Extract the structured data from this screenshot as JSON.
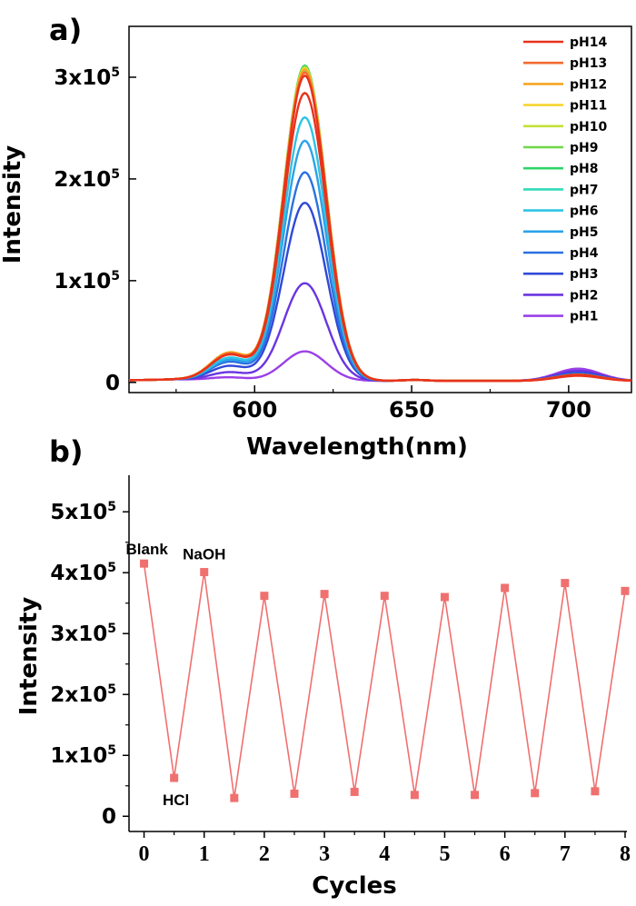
{
  "chart_data": [
    {
      "panel": "a)",
      "type": "line",
      "xlabel": "Wavelength(nm)",
      "ylabel": "Intensity",
      "xlim": [
        560,
        720
      ],
      "ylim": [
        -10000,
        350000
      ],
      "xticks": [
        {
          "value": 600,
          "label": "600"
        },
        {
          "value": 650,
          "label": "650"
        },
        {
          "value": 700,
          "label": "700"
        }
      ],
      "yticks": [
        {
          "value": 0,
          "label": "0"
        },
        {
          "value": 100000,
          "base": "1x10",
          "exp": "5"
        },
        {
          "value": 200000,
          "base": "2x10",
          "exp": "5"
        },
        {
          "value": 300000,
          "base": "3x10",
          "exp": "5"
        }
      ],
      "peak_center": 616,
      "peak_width": 6.8,
      "side_center": 592,
      "side_width": 6,
      "far_center": 703,
      "far_width": 7,
      "series": [
        {
          "name": "pH14",
          "color": "#e8331c",
          "peak": 300000,
          "side": 25000,
          "far": 6000
        },
        {
          "name": "pH13",
          "color": "#f26a2e",
          "peak": 303000,
          "side": 26000,
          "far": 6000
        },
        {
          "name": "pH12",
          "color": "#f5a623",
          "peak": 306000,
          "side": 27000,
          "far": 6000
        },
        {
          "name": "pH11",
          "color": "#f7d430",
          "peak": 307000,
          "side": 27000,
          "far": 6000
        },
        {
          "name": "pH10",
          "color": "#c2e038",
          "peak": 308000,
          "side": 27000,
          "far": 6000
        },
        {
          "name": "pH9",
          "color": "#6fd848",
          "peak": 309000,
          "side": 26000,
          "far": 6000
        },
        {
          "name": "pH8",
          "color": "#2fd46a",
          "peak": 310000,
          "side": 26000,
          "far": 6000
        },
        {
          "name": "pH7",
          "color": "#30dcb8",
          "peak": 305000,
          "side": 25000,
          "far": 6000
        },
        {
          "name": "pH6",
          "color": "#2ec4e6",
          "peak": 259000,
          "side": 22000,
          "far": 6000
        },
        {
          "name": "pH5",
          "color": "#2aa3e8",
          "peak": 236000,
          "side": 20000,
          "far": 6000
        },
        {
          "name": "pH4",
          "color": "#2a72e0",
          "peak": 205000,
          "side": 18000,
          "far": 7000
        },
        {
          "name": "pH3",
          "color": "#3048d8",
          "peak": 175000,
          "side": 14000,
          "far": 8000
        },
        {
          "name": "pH2",
          "color": "#6a35e0",
          "peak": 96000,
          "side": 8000,
          "far": 10000
        },
        {
          "name": "pH1",
          "color": "#9b3fe8",
          "peak": 29000,
          "side": 3000,
          "far": 12000
        }
      ],
      "highlight": {
        "color": "#e8331c",
        "peak": 283000,
        "side": 25000,
        "far": 5000
      }
    },
    {
      "panel": "b)",
      "type": "line",
      "xlabel": "Cycles",
      "ylabel": "Intensity",
      "xlim": [
        -0.25,
        8
      ],
      "ylim": [
        -25000,
        560000
      ],
      "color": "#f07070",
      "xticks": [
        {
          "value": 0,
          "label": "0"
        },
        {
          "value": 1,
          "label": "1"
        },
        {
          "value": 2,
          "label": "2"
        },
        {
          "value": 3,
          "label": "3"
        },
        {
          "value": 4,
          "label": "4"
        },
        {
          "value": 5,
          "label": "5"
        },
        {
          "value": 6,
          "label": "6"
        },
        {
          "value": 7,
          "label": "7"
        },
        {
          "value": 8,
          "label": "8"
        }
      ],
      "yticks": [
        {
          "value": 0,
          "label": "0"
        },
        {
          "value": 100000,
          "base": "1x10",
          "exp": "5"
        },
        {
          "value": 200000,
          "base": "2x10",
          "exp": "5"
        },
        {
          "value": 300000,
          "base": "3x10",
          "exp": "5"
        },
        {
          "value": 400000,
          "base": "4x10",
          "exp": "5"
        },
        {
          "value": 500000,
          "base": "5x10",
          "exp": "5"
        }
      ],
      "x": [
        0,
        0.5,
        1,
        1.5,
        2,
        2.5,
        3,
        3.5,
        4,
        4.5,
        5,
        5.5,
        6,
        6.5,
        7,
        7.5,
        8
      ],
      "y": [
        415000,
        63000,
        401000,
        30000,
        362000,
        37000,
        365000,
        40000,
        362000,
        35000,
        360000,
        35000,
        375000,
        38000,
        383000,
        41000,
        370000
      ],
      "annotations": [
        {
          "text": "Blank",
          "x": 0,
          "y": 415000,
          "anchor": "start",
          "dx": -20,
          "dy": -10
        },
        {
          "text": "NaOH",
          "x": 1,
          "y": 401000,
          "anchor": "middle",
          "dx": 0,
          "dy": -14
        },
        {
          "text": "HCl",
          "x": 0.5,
          "y": 63000,
          "anchor": "middle",
          "dx": 2,
          "dy": 30
        }
      ]
    }
  ]
}
